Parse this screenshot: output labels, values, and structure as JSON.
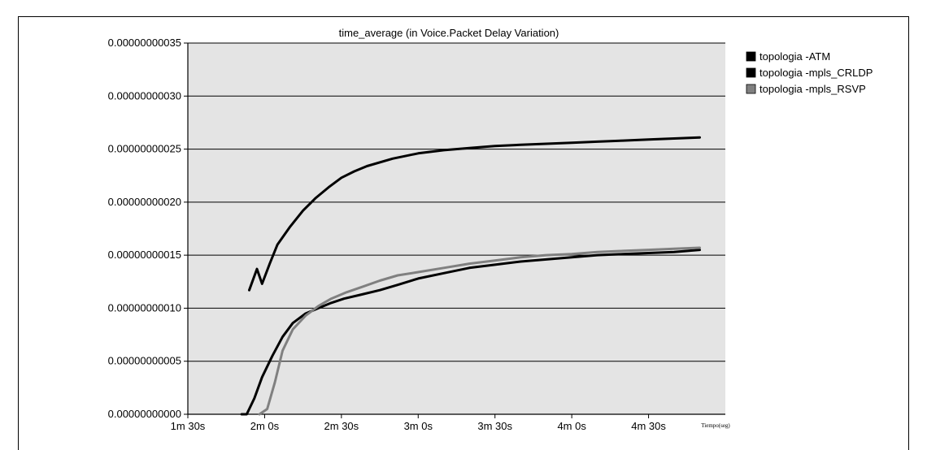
{
  "chart_data": {
    "type": "line",
    "title": "time_average (in Voice.Packet Delay Variation)",
    "xlabel": "Tiempo(seg)",
    "ylabel": "",
    "xlim": [
      90,
      300
    ],
    "ylim": [
      0,
      3.5e-10
    ],
    "grid": true,
    "legend_position": "top-right",
    "background_color": "#e4e4e4",
    "x_ticks": [
      {
        "value": 90,
        "label": "1m 30s"
      },
      {
        "value": 120,
        "label": "2m 0s"
      },
      {
        "value": 150,
        "label": "2m 30s"
      },
      {
        "value": 180,
        "label": "3m 0s"
      },
      {
        "value": 210,
        "label": "3m 30s"
      },
      {
        "value": 240,
        "label": "4m 0s"
      },
      {
        "value": 270,
        "label": "4m 30s"
      }
    ],
    "y_ticks": [
      {
        "value": 0,
        "label": "0.00000000000"
      },
      {
        "value": 5e-11,
        "label": "0.00000000005"
      },
      {
        "value": 1e-10,
        "label": "0.00000000010"
      },
      {
        "value": 1.5e-10,
        "label": "0.00000000015"
      },
      {
        "value": 2e-10,
        "label": "0.00000000020"
      },
      {
        "value": 2.5e-10,
        "label": "0.00000000025"
      },
      {
        "value": 3e-10,
        "label": "0.00000000030"
      },
      {
        "value": 3.5e-10,
        "label": "0.00000000035"
      }
    ],
    "series": [
      {
        "name": "topologia -ATM",
        "color": "#000000",
        "points": [
          [
            114,
            1.17e-10
          ],
          [
            117,
            1.37e-10
          ],
          [
            119,
            1.23e-10
          ],
          [
            122,
            1.42e-10
          ],
          [
            125,
            1.6e-10
          ],
          [
            130,
            1.77e-10
          ],
          [
            135,
            1.92e-10
          ],
          [
            140,
            2.04e-10
          ],
          [
            145,
            2.14e-10
          ],
          [
            150,
            2.23e-10
          ],
          [
            155,
            2.29e-10
          ],
          [
            160,
            2.34e-10
          ],
          [
            170,
            2.41e-10
          ],
          [
            180,
            2.46e-10
          ],
          [
            190,
            2.49e-10
          ],
          [
            200,
            2.51e-10
          ],
          [
            210,
            2.53e-10
          ],
          [
            220,
            2.54e-10
          ],
          [
            230,
            2.55e-10
          ],
          [
            240,
            2.56e-10
          ],
          [
            250,
            2.57e-10
          ],
          [
            260,
            2.58e-10
          ],
          [
            270,
            2.59e-10
          ],
          [
            280,
            2.6e-10
          ],
          [
            290,
            2.61e-10
          ]
        ]
      },
      {
        "name": "topologia -mpls_CRLDP",
        "color": "#000000",
        "points": [
          [
            111,
            0
          ],
          [
            113,
            0
          ],
          [
            116,
            1.5e-11
          ],
          [
            119,
            3.5e-11
          ],
          [
            123,
            5.5e-11
          ],
          [
            127,
            7.3e-11
          ],
          [
            131,
            8.6e-11
          ],
          [
            136,
            9.5e-11
          ],
          [
            141,
            1e-10
          ],
          [
            146,
            1.05e-10
          ],
          [
            151,
            1.09e-10
          ],
          [
            158,
            1.13e-10
          ],
          [
            165,
            1.17e-10
          ],
          [
            172,
            1.22e-10
          ],
          [
            180,
            1.28e-10
          ],
          [
            190,
            1.33e-10
          ],
          [
            200,
            1.38e-10
          ],
          [
            210,
            1.41e-10
          ],
          [
            220,
            1.44e-10
          ],
          [
            230,
            1.46e-10
          ],
          [
            240,
            1.48e-10
          ],
          [
            250,
            1.5e-10
          ],
          [
            260,
            1.51e-10
          ],
          [
            270,
            1.52e-10
          ],
          [
            280,
            1.53e-10
          ],
          [
            290,
            1.55e-10
          ]
        ]
      },
      {
        "name": "topologia -mpls_RSVP",
        "color": "#808080",
        "points": [
          [
            118,
            0
          ],
          [
            121,
            5e-12
          ],
          [
            124,
            3e-11
          ],
          [
            127,
            6e-11
          ],
          [
            131,
            8e-11
          ],
          [
            136,
            9.3e-11
          ],
          [
            141,
            1.02e-10
          ],
          [
            146,
            1.09e-10
          ],
          [
            152,
            1.15e-10
          ],
          [
            158,
            1.2e-10
          ],
          [
            165,
            1.26e-10
          ],
          [
            172,
            1.31e-10
          ],
          [
            180,
            1.34e-10
          ],
          [
            190,
            1.38e-10
          ],
          [
            200,
            1.42e-10
          ],
          [
            210,
            1.45e-10
          ],
          [
            220,
            1.48e-10
          ],
          [
            230,
            1.5e-10
          ],
          [
            240,
            1.51e-10
          ],
          [
            250,
            1.53e-10
          ],
          [
            260,
            1.54e-10
          ],
          [
            270,
            1.55e-10
          ],
          [
            280,
            1.56e-10
          ],
          [
            290,
            1.57e-10
          ]
        ]
      }
    ]
  }
}
